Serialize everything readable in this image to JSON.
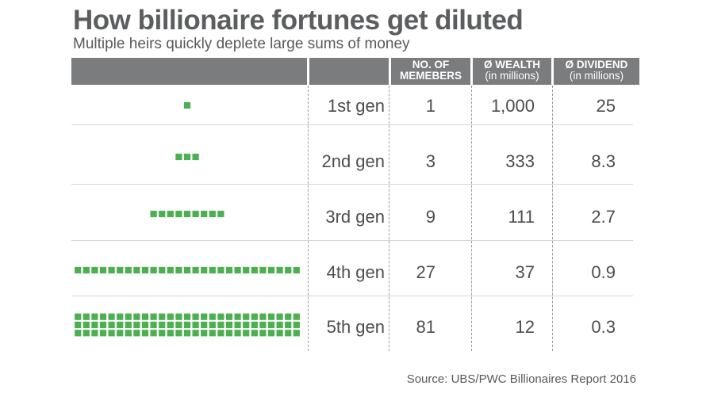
{
  "header": {
    "title": "How billionaire fortunes get diluted",
    "subtitle": "Multiple heirs quickly deplete large sums of money"
  },
  "columns": {
    "members": {
      "line1": "NO. OF",
      "line2": "MEMEBERS"
    },
    "wealth": {
      "line1": "Ø WEALTH",
      "line2": "(in millions)"
    },
    "dividend": {
      "line1": "Ø DIVIDEND",
      "line2": "(in millions)"
    }
  },
  "rows": [
    {
      "gen": "1st gen",
      "members": "1",
      "wealth": "1,000",
      "dividend": "25"
    },
    {
      "gen": "2nd gen",
      "members": "3",
      "wealth": "333",
      "dividend": "8.3"
    },
    {
      "gen": "3rd gen",
      "members": "9",
      "wealth": "111",
      "dividend": "2.7"
    },
    {
      "gen": "4th gen",
      "members": "27",
      "wealth": "37",
      "dividend": "0.9"
    },
    {
      "gen": "5th gen",
      "members": "81",
      "wealth": "12",
      "dividend": "0.3"
    }
  ],
  "chart_data": {
    "type": "table",
    "title": "How billionaire fortunes get diluted",
    "subtitle": "Multiple heirs quickly deplete large sums of money",
    "categories": [
      "1st gen",
      "2nd gen",
      "3rd gen",
      "4th gen",
      "5th gen"
    ],
    "series": [
      {
        "name": "NO. OF MEMEBERS",
        "values": [
          1,
          3,
          9,
          27,
          81
        ]
      },
      {
        "name": "Ø WEALTH (in millions)",
        "values": [
          1000,
          333,
          111,
          37,
          12
        ]
      },
      {
        "name": "Ø DIVIDEND (in millions)",
        "values": [
          25,
          8.3,
          2.7,
          0.9,
          0.3
        ]
      }
    ],
    "dot_color": "#4caf50"
  },
  "source": "Source: UBS/PWC Billionaires Report 2016"
}
